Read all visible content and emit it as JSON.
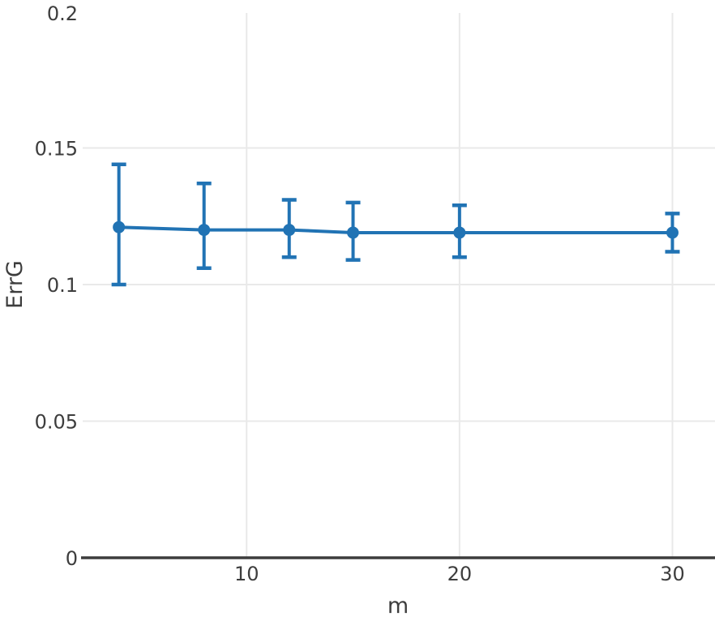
{
  "chart_data": {
    "type": "line",
    "title": "",
    "xlabel": "m",
    "ylabel": "ErrG",
    "series": [
      {
        "name": "ErrG",
        "x": [
          4,
          8,
          12,
          15,
          20,
          30
        ],
        "y": [
          0.121,
          0.12,
          0.12,
          0.119,
          0.119,
          0.119
        ],
        "y_lower": [
          0.1,
          0.106,
          0.11,
          0.109,
          0.11,
          0.112
        ],
        "y_upper": [
          0.144,
          0.137,
          0.131,
          0.13,
          0.129,
          0.126
        ]
      }
    ],
    "error_bars": true,
    "marker": "circle",
    "xlim": [
      2.3,
      32
    ],
    "ylim": [
      0,
      0.2
    ],
    "x_ticks": [
      10,
      20,
      30
    ],
    "x_tick_labels": [
      "10",
      "20",
      "30"
    ],
    "y_ticks": [
      0,
      0.05,
      0.1,
      0.15,
      0.2
    ],
    "y_tick_labels": [
      "0",
      "0.05",
      "0.1",
      "0.15",
      "0.2"
    ],
    "grid": true,
    "legend_position": "none",
    "colors": {
      "line": "#2173b4",
      "marker": "#2173b4",
      "error_bar": "#2173b4",
      "grid": "#e9e9e9",
      "axis": "#3d3d3d",
      "text": "#3d3d3d",
      "background": "#ffffff"
    }
  }
}
